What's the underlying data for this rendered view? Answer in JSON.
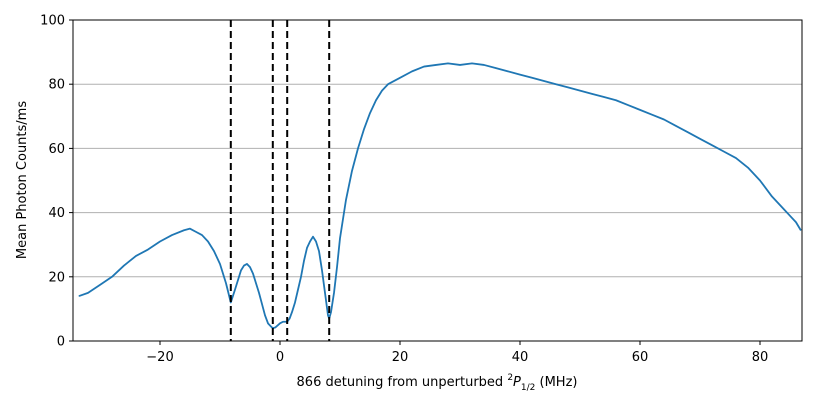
{
  "chart_data": {
    "type": "line",
    "xlabel_parts": {
      "prefix": "866 detuning from unperturbed ",
      "sup": "2",
      "symbol": "P",
      "sub": "1/2",
      "suffix": " (MHz)"
    },
    "ylabel": "Mean Photon Counts/ms",
    "xlim": [
      -34.5,
      87
    ],
    "ylim": [
      0,
      100
    ],
    "x_ticks": [
      -20,
      0,
      20,
      40,
      60,
      80
    ],
    "x_tick_labels": [
      "−20",
      "0",
      "20",
      "40",
      "60",
      "80"
    ],
    "y_ticks": [
      0,
      20,
      40,
      60,
      80,
      100
    ],
    "y_tick_labels": [
      "0",
      "20",
      "40",
      "60",
      "80",
      "100"
    ],
    "grid": "y",
    "line_color": "#1f77b4",
    "vlines": [
      {
        "x": -8.2,
        "style": "dashed",
        "color": "#000000"
      },
      {
        "x": -1.2,
        "style": "dashed",
        "color": "#000000"
      },
      {
        "x": 1.2,
        "style": "dashed",
        "color": "#000000"
      },
      {
        "x": 8.2,
        "style": "dashed",
        "color": "#000000"
      }
    ],
    "series": [
      {
        "x": [
          -33.5,
          -32,
          -30,
          -28,
          -26,
          -24,
          -22,
          -20,
          -18,
          -16,
          -15,
          -14,
          -13,
          -12,
          -11,
          -10,
          -9,
          -8.2,
          -7.5,
          -7,
          -6.5,
          -6,
          -5.5,
          -5,
          -4.5,
          -4,
          -3.5,
          -3,
          -2.5,
          -2,
          -1.5,
          -1.2,
          -0.8,
          -0.3,
          0,
          0.5,
          1,
          1.2,
          1.6,
          2,
          2.5,
          3,
          3.5,
          4,
          4.5,
          5,
          5.5,
          6,
          6.5,
          7,
          7.5,
          8,
          8.2,
          8.5,
          9,
          9.5,
          10,
          10.5,
          11,
          12,
          13,
          14,
          15,
          16,
          17,
          18,
          20,
          22,
          24,
          26,
          28,
          30,
          32,
          34,
          36,
          38,
          40,
          42,
          44,
          46,
          48,
          50,
          52,
          54,
          56,
          58,
          60,
          62,
          64,
          66,
          68,
          70,
          72,
          74,
          76,
          78,
          80,
          82,
          84,
          85,
          86,
          86.8
        ],
        "y": [
          14,
          15,
          17.5,
          20,
          23.5,
          26.5,
          28.5,
          31,
          33,
          34.5,
          35,
          34,
          33,
          31,
          28,
          24,
          18,
          12,
          16,
          19,
          22,
          23.5,
          24,
          23,
          21,
          18,
          15,
          11.5,
          8,
          5.5,
          4.5,
          4,
          4.2,
          5,
          5.5,
          6,
          6,
          6,
          7,
          9,
          12,
          16,
          20,
          25,
          29,
          31,
          32.5,
          31,
          28,
          22,
          15,
          8,
          7,
          9,
          15,
          23,
          32,
          38,
          44,
          53,
          60,
          66,
          71,
          75,
          78,
          80,
          82,
          84,
          85.5,
          86,
          86.5,
          86,
          86.5,
          86,
          85,
          84,
          83,
          82,
          81,
          80,
          79,
          78,
          77,
          76,
          75,
          73.5,
          72,
          70.5,
          69,
          67,
          65,
          63,
          61,
          59,
          57,
          54,
          50,
          45,
          41,
          39,
          37,
          34.5
        ]
      }
    ]
  }
}
